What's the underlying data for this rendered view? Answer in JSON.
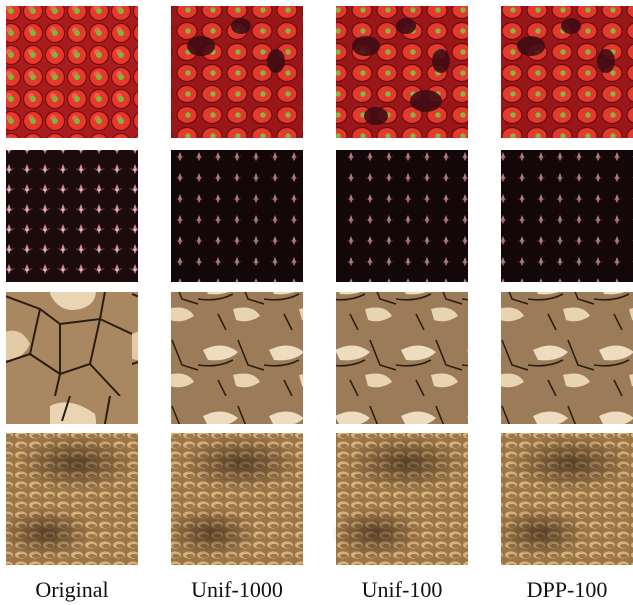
{
  "columns": [
    "Original",
    "Unif-1000",
    "Unif-100",
    "DPP-100"
  ]
}
